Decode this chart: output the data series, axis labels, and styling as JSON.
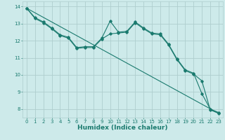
{
  "xlabel": "Humidex (Indice chaleur)",
  "ylabel": "",
  "xlim": [
    -0.5,
    23.5
  ],
  "ylim": [
    7.5,
    14.3
  ],
  "yticks": [
    8,
    9,
    10,
    11,
    12,
    13,
    14
  ],
  "xticks": [
    0,
    1,
    2,
    3,
    4,
    5,
    6,
    7,
    8,
    9,
    10,
    11,
    12,
    13,
    14,
    15,
    16,
    17,
    18,
    19,
    20,
    21,
    22,
    23
  ],
  "background_color": "#cdeaea",
  "grid_color": "#aecece",
  "line_color": "#1a7a6e",
  "line1_x": [
    0,
    1,
    2,
    3,
    4,
    5,
    6,
    7,
    8,
    9,
    10,
    11,
    12,
    13,
    14,
    15,
    16,
    17,
    18,
    19,
    20,
    21,
    22,
    23
  ],
  "line1_y": [
    13.9,
    13.35,
    13.1,
    12.75,
    12.35,
    12.2,
    11.6,
    11.65,
    11.65,
    12.15,
    13.15,
    12.5,
    12.55,
    13.1,
    12.75,
    12.45,
    12.4,
    11.8,
    10.95,
    10.3,
    10.1,
    8.9,
    8.0,
    7.8
  ],
  "line2_x": [
    0,
    1,
    2,
    3,
    4,
    5,
    6,
    7,
    8,
    9,
    10,
    11,
    12,
    13,
    14,
    15,
    16,
    17,
    18,
    19,
    20,
    21,
    22,
    23
  ],
  "line2_y": [
    13.9,
    13.3,
    13.05,
    12.7,
    12.3,
    12.15,
    11.55,
    11.6,
    11.6,
    12.1,
    12.4,
    12.45,
    12.5,
    13.05,
    12.7,
    12.4,
    12.35,
    11.75,
    10.9,
    10.25,
    10.05,
    9.65,
    7.95,
    7.75
  ],
  "line3_x": [
    0,
    23
  ],
  "line3_y": [
    13.9,
    7.75
  ],
  "marker_style": "D",
  "marker_size": 1.8,
  "line_width": 0.8,
  "font_color": "#1a7a6e",
  "tick_fontsize": 5.0,
  "xlabel_fontsize": 6.5
}
